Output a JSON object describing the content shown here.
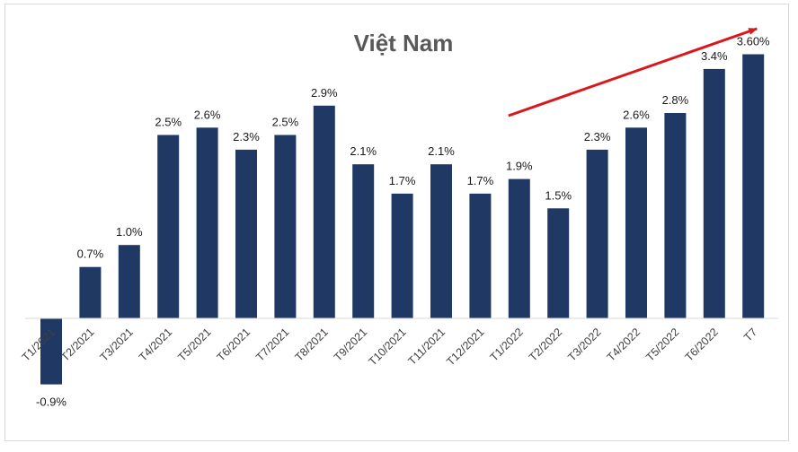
{
  "chart_data": {
    "type": "bar",
    "title": "Việt Nam",
    "xlabel": "",
    "ylabel": "",
    "categories": [
      "T1/2021",
      "T2/2021",
      "T3/2021",
      "T4/2021",
      "T5/2021",
      "T6/2021",
      "T7/2021",
      "T8/2021",
      "T9/2021",
      "T10/2021",
      "T11/2021",
      "T12/2021",
      "T1/2022",
      "T2/2022",
      "T3/2022",
      "T4/2022",
      "T5/2022",
      "T6/2022",
      "T7"
    ],
    "values": [
      -0.9,
      0.7,
      1.0,
      2.5,
      2.6,
      2.3,
      2.5,
      2.9,
      2.1,
      1.7,
      2.1,
      1.7,
      1.9,
      1.5,
      2.3,
      2.6,
      2.8,
      3.4,
      3.6
    ],
    "data_labels": [
      "-0.9%",
      "0.7%",
      "1.0%",
      "2.5%",
      "2.6%",
      "2.3%",
      "2.5%",
      "2.9%",
      "2.1%",
      "1.7%",
      "2.1%",
      "1.7%",
      "1.9%",
      "1.5%",
      "2.3%",
      "2.6%",
      "2.8%",
      "3.4%",
      "3.60%"
    ],
    "ylim": [
      -0.9,
      3.6
    ],
    "grid": false,
    "legend": "none",
    "bar_color": "#1f3864",
    "annotation": {
      "type": "trend-arrow",
      "color": "#d9181c",
      "from_category": "T1/2022",
      "to_category": "T7"
    }
  }
}
